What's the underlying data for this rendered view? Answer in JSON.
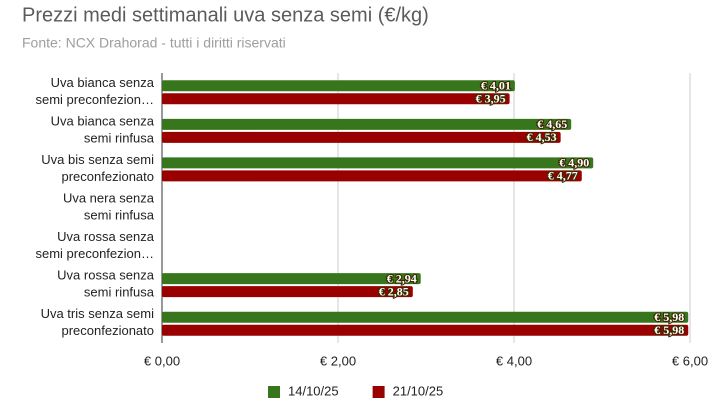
{
  "chart_data": {
    "type": "hbar",
    "title": "Prezzi medi settimanali uva senza semi (€/kg)",
    "subtitle": "Fonte: NCX Drahorad - tutti i diritti riservati",
    "categories": [
      "Uva bianca senza\nsemi preconfezion…",
      "Uva bianca senza\nsemi rinfusa",
      "Uva bis senza semi\npreconfezionato",
      "Uva nera senza\nsemi rinfusa",
      "Uva rossa senza\nsemi preconfezion…",
      "Uva rossa senza\nsemi rinfusa",
      "Uva tris senza semi\npreconfezionato"
    ],
    "series": [
      {
        "name": "14/10/25",
        "color": "#38761d",
        "values": [
          4.01,
          4.65,
          4.9,
          null,
          null,
          2.94,
          5.98
        ],
        "value_labels": [
          "€ 4,01",
          "€ 4,65",
          "€ 4,90",
          null,
          null,
          "€ 2,94",
          "€ 5,98"
        ]
      },
      {
        "name": "21/10/25",
        "color": "#990000",
        "values": [
          3.95,
          4.53,
          4.77,
          null,
          null,
          2.85,
          5.98
        ],
        "value_labels": [
          "€ 3,95",
          "€ 4,53",
          "€ 4,77",
          null,
          null,
          "€ 2,85",
          "€ 5,98"
        ]
      }
    ],
    "xlim": [
      0,
      6
    ],
    "xticks": [
      {
        "value": 0,
        "label": "€ 0,00"
      },
      {
        "value": 2,
        "label": "€ 2,00"
      },
      {
        "value": 4,
        "label": "€ 4,00"
      },
      {
        "value": 6,
        "label": "€ 6,00"
      }
    ],
    "grid": true,
    "legend": "bottom"
  }
}
